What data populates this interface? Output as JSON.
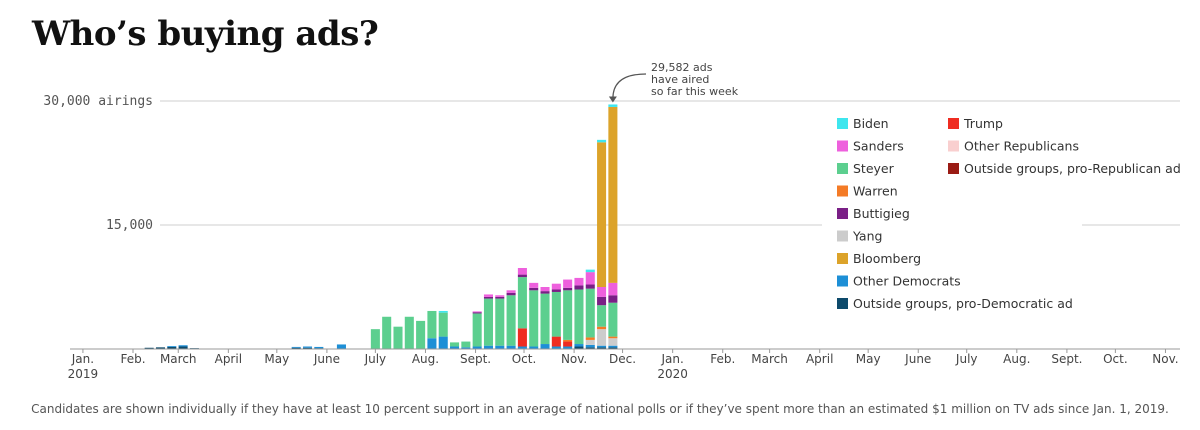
{
  "title": "Who’s buying ads?",
  "footnote": "Candidates are shown individually if they have at least 10 percent support in an average of national polls or if they’ve spent more than an estimated $1 million on TV ads since Jan. 1, 2019.",
  "chart_data": {
    "type": "bar",
    "stacked": true,
    "title": "Who’s buying ads?",
    "ylabel": "airings",
    "ylim": [
      0,
      30000
    ],
    "yticks": [
      {
        "value": 30000,
        "label": "30,000 airings"
      },
      {
        "value": 15000,
        "label": "15,000"
      }
    ],
    "xaxis_start": "2018-12-24",
    "xaxis_end": "2020-11-10",
    "xticks": [
      {
        "date": "2019-01-01",
        "label": "Jan.",
        "year": "2019"
      },
      {
        "date": "2019-02-01",
        "label": "Feb."
      },
      {
        "date": "2019-03-01",
        "label": "March"
      },
      {
        "date": "2019-04-01",
        "label": "April"
      },
      {
        "date": "2019-05-01",
        "label": "May"
      },
      {
        "date": "2019-06-01",
        "label": "June"
      },
      {
        "date": "2019-07-01",
        "label": "July"
      },
      {
        "date": "2019-08-01",
        "label": "Aug."
      },
      {
        "date": "2019-09-01",
        "label": "Sept."
      },
      {
        "date": "2019-10-01",
        "label": "Oct."
      },
      {
        "date": "2019-11-01",
        "label": "Nov."
      },
      {
        "date": "2019-12-01",
        "label": "Dec."
      },
      {
        "date": "2020-01-01",
        "label": "Jan.",
        "year": "2020"
      },
      {
        "date": "2020-02-01",
        "label": "Feb."
      },
      {
        "date": "2020-03-01",
        "label": "March"
      },
      {
        "date": "2020-04-01",
        "label": "April"
      },
      {
        "date": "2020-05-01",
        "label": "May"
      },
      {
        "date": "2020-06-01",
        "label": "June"
      },
      {
        "date": "2020-07-01",
        "label": "July"
      },
      {
        "date": "2020-08-01",
        "label": "Aug."
      },
      {
        "date": "2020-09-01",
        "label": "Sept."
      },
      {
        "date": "2020-10-01",
        "label": "Oct."
      },
      {
        "date": "2020-11-01",
        "label": "Nov."
      }
    ],
    "annotation": {
      "lines": [
        "29,582 ads",
        "have aired",
        "so far this week"
      ],
      "week": "2019-11-25",
      "value": 29582
    },
    "series": [
      {
        "key": "biden",
        "name": "Biden",
        "color": "#3ee6ee"
      },
      {
        "key": "sanders",
        "name": "Sanders",
        "color": "#ee60dd"
      },
      {
        "key": "steyer",
        "name": "Steyer",
        "color": "#5ccf8f"
      },
      {
        "key": "warren",
        "name": "Warren",
        "color": "#f47b26"
      },
      {
        "key": "buttigieg",
        "name": "Buttigieg",
        "color": "#7a1f86"
      },
      {
        "key": "yang",
        "name": "Yang",
        "color": "#cccccc"
      },
      {
        "key": "bloomberg",
        "name": "Bloomberg",
        "color": "#dca32a"
      },
      {
        "key": "other_dem",
        "name": "Other Democrats",
        "color": "#1d8fd6"
      },
      {
        "key": "outside_dem",
        "name": "Outside groups, pro-Democratic ad",
        "color": "#0d4a6b"
      },
      {
        "key": "trump",
        "name": "Trump",
        "color": "#ef2c21"
      },
      {
        "key": "other_rep",
        "name": "Other Republicans",
        "color": "#f9cfcf"
      },
      {
        "key": "outside_rep",
        "name": "Outside groups, pro-Republican ad",
        "color": "#9a1b14"
      }
    ],
    "stack_order": [
      "outside_dem",
      "other_dem",
      "trump",
      "other_rep",
      "outside_rep",
      "yang",
      "warren",
      "steyer",
      "buttigieg",
      "sanders",
      "bloomberg",
      "biden"
    ],
    "weeks": [
      {
        "date": "2019-02-11",
        "outside_dem": 150
      },
      {
        "date": "2019-02-18",
        "outside_dem": 200
      },
      {
        "date": "2019-02-25",
        "outside_dem": 250,
        "other_dem": 100
      },
      {
        "date": "2019-03-04",
        "outside_dem": 300,
        "other_dem": 150
      },
      {
        "date": "2019-03-11",
        "outside_dem": 100
      },
      {
        "date": "2019-05-13",
        "outside_dem": 150,
        "other_dem": 100
      },
      {
        "date": "2019-05-20",
        "outside_dem": 150,
        "other_dem": 150
      },
      {
        "date": "2019-05-27",
        "outside_dem": 100,
        "other_dem": 150
      },
      {
        "date": "2019-06-10",
        "other_dem": 550
      },
      {
        "date": "2019-07-01",
        "steyer": 2400
      },
      {
        "date": "2019-07-08",
        "steyer": 3900
      },
      {
        "date": "2019-07-15",
        "steyer": 2700
      },
      {
        "date": "2019-07-22",
        "steyer": 3900
      },
      {
        "date": "2019-07-29",
        "steyer": 3400
      },
      {
        "date": "2019-08-05",
        "other_dem": 1300,
        "steyer": 3300
      },
      {
        "date": "2019-08-12",
        "other_dem": 1500,
        "steyer": 2900,
        "biden": 200
      },
      {
        "date": "2019-08-19",
        "other_dem": 300,
        "steyer": 500
      },
      {
        "date": "2019-08-26",
        "other_dem": 200,
        "steyer": 700
      },
      {
        "date": "2019-09-02",
        "other_dem": 300,
        "steyer": 4000,
        "buttigieg": 150,
        "sanders": 100
      },
      {
        "date": "2019-09-09",
        "other_dem": 400,
        "steyer": 5700,
        "buttigieg": 200,
        "sanders": 300
      },
      {
        "date": "2019-09-16",
        "other_dem": 400,
        "steyer": 5700,
        "buttigieg": 200,
        "sanders": 200
      },
      {
        "date": "2019-09-23",
        "other_dem": 400,
        "steyer": 6100,
        "buttigieg": 300,
        "sanders": 300
      },
      {
        "date": "2019-09-30",
        "trump": 2200,
        "other_dem": 300,
        "steyer": 6200,
        "buttigieg": 300,
        "sanders": 800
      },
      {
        "date": "2019-10-07",
        "other_dem": 300,
        "steyer": 6800,
        "buttigieg": 300,
        "sanders": 600
      },
      {
        "date": "2019-10-14",
        "other_dem": 600,
        "steyer": 6100,
        "buttigieg": 300,
        "sanders": 500
      },
      {
        "date": "2019-10-21",
        "trump": 1200,
        "other_dem": 300,
        "steyer": 5400,
        "buttigieg": 300,
        "sanders": 700
      },
      {
        "date": "2019-10-28",
        "trump": 600,
        "other_dem": 300,
        "warren": 200,
        "steyer": 6000,
        "buttigieg": 300,
        "sanders": 1000
      },
      {
        "date": "2019-11-04",
        "outside_dem": 300,
        "other_dem": 300,
        "steyer": 6600,
        "buttigieg": 500,
        "sanders": 900
      },
      {
        "date": "2019-11-11",
        "outside_dem": 200,
        "other_dem": 300,
        "yang": 600,
        "warren": 300,
        "steyer": 5900,
        "buttigieg": 500,
        "sanders": 1500,
        "biden": 300
      },
      {
        "date": "2019-11-18",
        "outside_dem": 200,
        "other_dem": 200,
        "yang": 2000,
        "warren": 300,
        "steyer": 2600,
        "buttigieg": 1000,
        "sanders": 1200,
        "bloomberg": 17500,
        "biden": 300
      },
      {
        "date": "2019-11-25",
        "outside_dem": 200,
        "other_dem": 200,
        "yang": 900,
        "warren": 200,
        "steyer": 4100,
        "buttigieg": 900,
        "sanders": 1500,
        "bloomberg": 21282,
        "biden": 300
      }
    ]
  }
}
